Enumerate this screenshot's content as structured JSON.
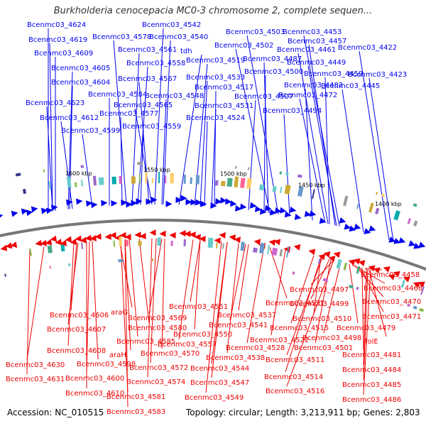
{
  "title": "Burkholderia cenocepacia MC0-3 chromosome 2, complete sequen...",
  "footer": {
    "accession": "Accession: NC_010515",
    "summary": "Topology: circular; Length: 3,213,911 bp; Genes: 2,803"
  },
  "ticks": [
    "1400 kbp",
    "1450 kbp",
    "1500 kbp",
    "1550 kbp",
    "1600 kbp"
  ],
  "top_labels": [
    "Bcenmc03_4624",
    "Bcenmc03_4542",
    "Bcenmc03_4503",
    "Bcenmc03_4453",
    "Bcenmc03_4619",
    "Bcenmc03_4578",
    "Bcenmc03_4540",
    "Bcenmc03_4502",
    "Bcenmc03_4457",
    "Bcenmc03_4422",
    "Bcenmc03_4609",
    "Bcenmc03_4561",
    "tdh",
    "Bcenmc03_4461",
    "Bcenmc03_4558",
    "Bcenmc03_4519",
    "Bcenmc03_4487",
    "Bcenmc03_4449",
    "Bcenmc03_4605",
    "Bcenmc03_4500",
    "Bcenmc03_4459",
    "Bcenmc03_4423",
    "Bcenmc03_4604",
    "Bcenmc03_4567",
    "Bcenmc03_4533",
    "Bcenmc03_4482",
    "Bcenmc03_4445",
    "Bcenmc03_4517",
    "Bcenmc03_4584",
    "Bcenmc03_4548",
    "Bcenmc03_4507",
    "Bcenmc03_4472",
    "Bcenmc03_4623",
    "Bcenmc03_4565",
    "Bcenmc03_4531",
    "Bcenmc03_4494",
    "Bcenmc03_4577",
    "Bcenmc03_4612",
    "Bcenmc03_4524",
    "Bcenmc03_4559",
    "Bcenmc03_4599"
  ],
  "bottom_labels": [
    "Bcenmc03_4458",
    "Bcenmc03_4468",
    "Bcenmc03_4497",
    "Bcenmc03_4470",
    "Bcenmc03_4499",
    "Bcenmc03_4521",
    "Bcenmc03_4551",
    "Bcenmc03_4471",
    "Bcenmc03_4537",
    "Bcenmc03_4510",
    "araG",
    "Bcenmc03_4606",
    "Bcenmc03_4569",
    "Bcenmc03_4541",
    "Bcenmc03_4479",
    "Bcenmc03_4580",
    "Bcenmc03_4515",
    "Bcenmc03_4607",
    "Bcenmc03_4550",
    "Bcenmc03_4522",
    "Bcenmc03_4498",
    "Bcenmc03_4585",
    "Bcenmc03_4557",
    "Bcenmc03_4528",
    "Bcenmc03_4501",
    "folE",
    "Bcenmc03_4608",
    "araH",
    "Bcenmc03_4570",
    "Bcenmc03_4538",
    "Bcenmc03_4481",
    "Bcenmc03_4630",
    "Bcenmc03_4598",
    "Bcenmc03_4511",
    "Bcenmc03_4572",
    "Bcenmc03_4544",
    "Bcenmc03_4484",
    "Bcenmc03_4631",
    "Bcenmc03_4600",
    "Bcenmc03_4514",
    "Bcenmc03_4574",
    "Bcenmc03_4547",
    "Bcenmc03_4485",
    "Bcenmc03_4610",
    "Bcenmc03_4516",
    "Bcenmc03_4581",
    "Bcenmc03_4549",
    "Bcenmc03_4486",
    "Bcenmc03_4583"
  ],
  "colors": {
    "forward": "#0000ee",
    "reverse": "#ee0000",
    "backbone": "#777777",
    "misc_feature": "#22aa22"
  }
}
